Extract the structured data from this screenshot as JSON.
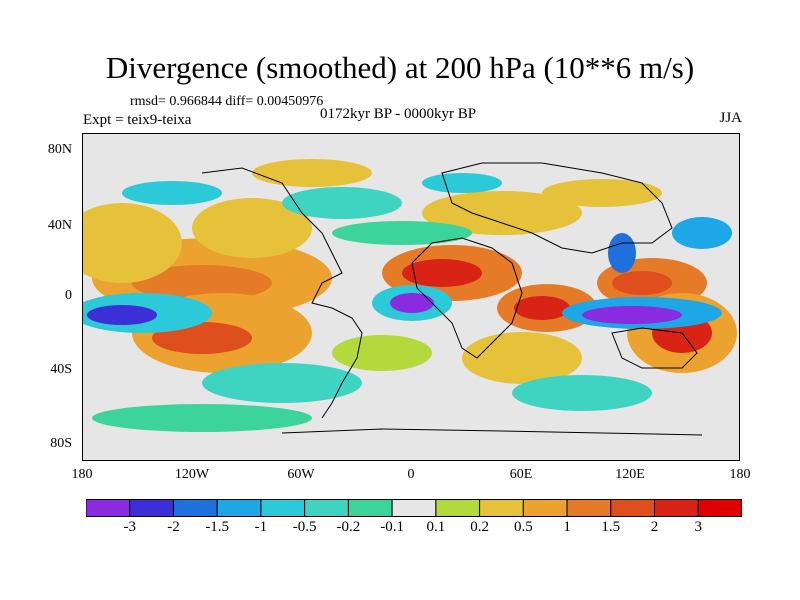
{
  "title": "Divergence (smoothed) at 200 hPa (10**6 m/s)",
  "stats": "rmsd= 0.966844 diff= 0.00450976",
  "period": "0172kyr BP - 0000kyr BP",
  "experiment": "Expt = teix9-teixa",
  "season": "JJA",
  "x_ticks": [
    "180",
    "120W",
    "60W",
    "0",
    "60E",
    "120E",
    "180"
  ],
  "y_ticks": [
    "80N",
    "40N",
    "0",
    "40S",
    "80S"
  ],
  "colorbar": {
    "labels": [
      "-3",
      "-2",
      "-1.5",
      "-1",
      "-0.5",
      "-0.2",
      "-0.1",
      "0.1",
      "0.2",
      "0.5",
      "1",
      "1.5",
      "2",
      "3"
    ],
    "colors": [
      "#8a2be2",
      "#3d2fd8",
      "#1f6fdc",
      "#1ea7e6",
      "#2ccad8",
      "#3fd4c2",
      "#3cd49a",
      "#e6e6e6",
      "#b4d93c",
      "#e6c23a",
      "#eba22f",
      "#e57b26",
      "#df4f1e",
      "#d92316",
      "#e00000"
    ]
  }
}
